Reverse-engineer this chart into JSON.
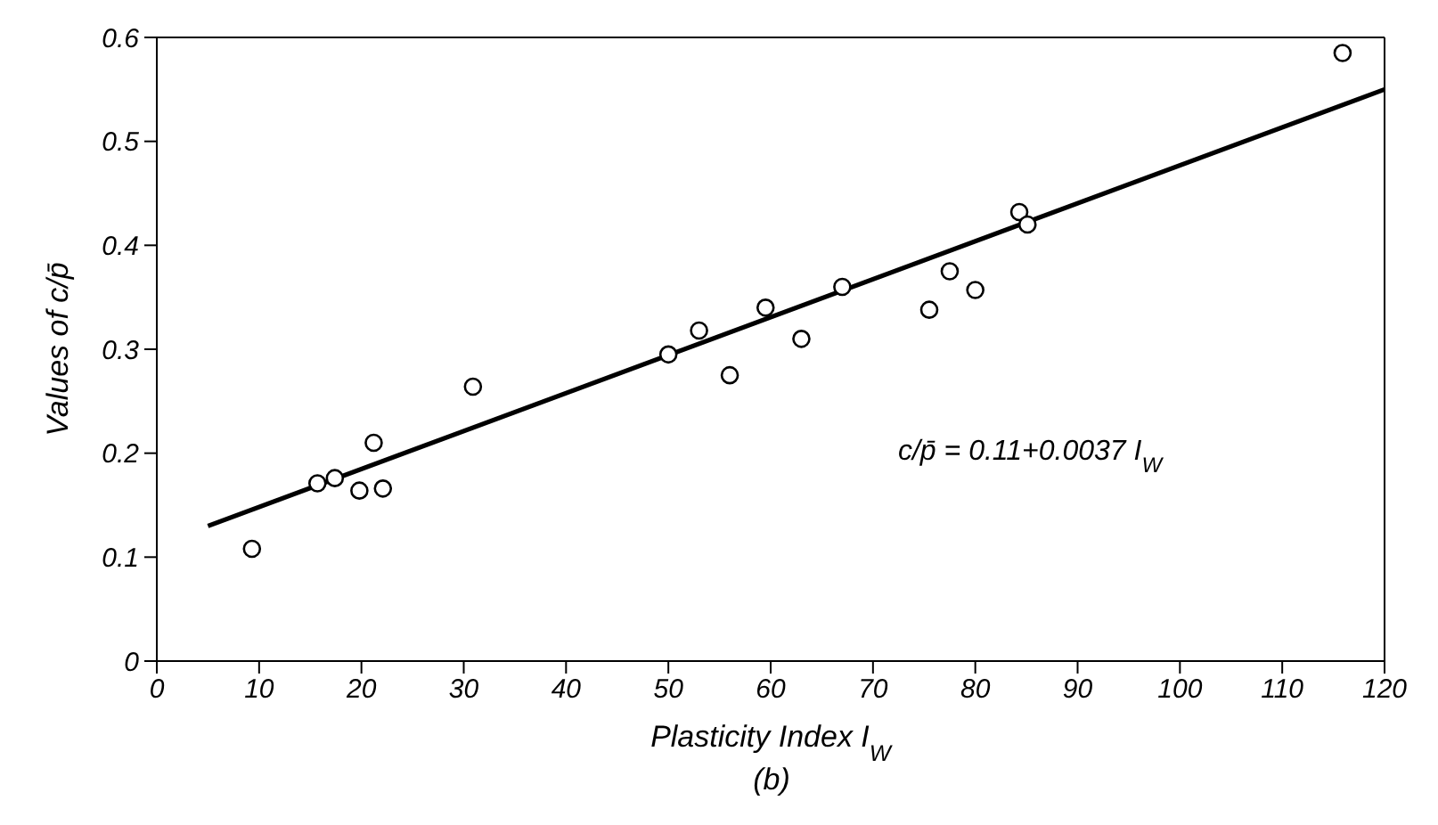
{
  "chart_data": {
    "type": "scatter",
    "xlabel": "Plasticity Index I$_{W}$",
    "ylabel": "Values of c/p̄",
    "xlim": [
      0,
      120
    ],
    "ylim": [
      0,
      0.6
    ],
    "xticks": [
      0,
      10,
      20,
      30,
      40,
      50,
      60,
      70,
      80,
      90,
      100,
      110,
      120
    ],
    "yticks": [
      0,
      0.1,
      0.2,
      0.3,
      0.4,
      0.5,
      0.6
    ],
    "grid": false,
    "legend": false,
    "series": [
      {
        "type": "scatter",
        "marker": "circle",
        "color": "#000000",
        "x": [
          9.3,
          15.7,
          17.4,
          19.8,
          21.2,
          22.1,
          30.9,
          50,
          53,
          56,
          59.5,
          63,
          67,
          75.5,
          77.5,
          80,
          84.3,
          85.1,
          115.9
        ],
        "values": [
          0.108,
          0.171,
          0.176,
          0.164,
          0.21,
          0.166,
          0.264,
          0.295,
          0.318,
          0.275,
          0.34,
          0.31,
          0.36,
          0.338,
          0.375,
          0.357,
          0.432,
          0.42,
          0.585
        ]
      },
      {
        "type": "line",
        "marker": "none",
        "line_style": "solid",
        "color": "#000000",
        "x": [
          5,
          120
        ],
        "values": [
          0.13,
          0.55
        ]
      }
    ],
    "annotations": [
      "c/p̄ = 0.11+0.0037 I$_{W}$",
      "(b)"
    ]
  }
}
